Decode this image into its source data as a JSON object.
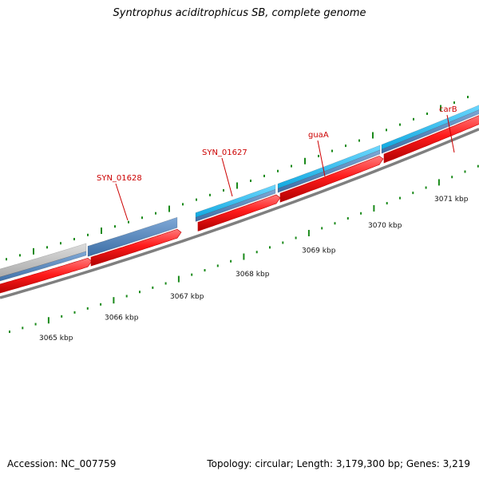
{
  "title": "Syntrophus aciditrophicus SB, complete genome",
  "footer": {
    "accession": "Accession: NC_007759",
    "summary": "Topology: circular; Length: 3,179,300 bp; Genes: 3,219"
  },
  "scale": {
    "unit": "kbp",
    "labels": [
      "3065 kbp",
      "3066 kbp",
      "3067 kbp",
      "3068 kbp",
      "3069 kbp",
      "3070 kbp",
      "3071 kbp"
    ]
  },
  "gene_labels": [
    "SYN_01628",
    "SYN_01627",
    "guaA",
    "carB"
  ],
  "colors": {
    "cds": "#ff2020",
    "gene_blue": "#4a80b8",
    "gene_highlight": "#22bbee",
    "gene_grey": "#b8b8b8",
    "backbone": "#808080",
    "tick": "#1a8a1a",
    "label": "#cc0000"
  }
}
